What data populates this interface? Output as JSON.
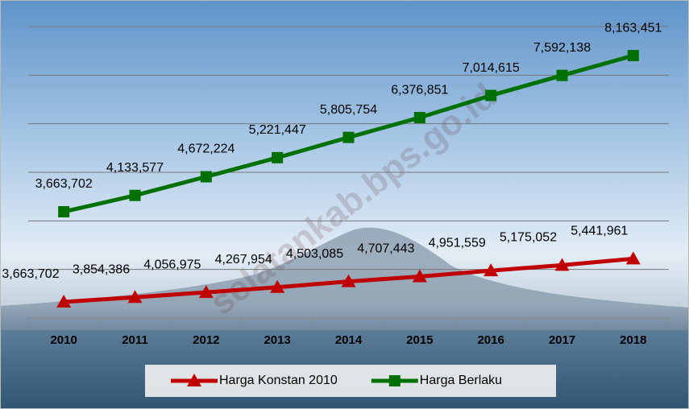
{
  "chart_data": {
    "type": "line",
    "watermark": "selatankab.bps.go.id",
    "categories": [
      "2010",
      "2011",
      "2012",
      "2013",
      "2014",
      "2015",
      "2016",
      "2017",
      "2018"
    ],
    "series": [
      {
        "name": "Harga Konstan 2010",
        "color": "#c00000",
        "marker": "triangle",
        "axis": "y2",
        "values": [
          3663702,
          3854386,
          4056975,
          4267954,
          4503085,
          4707443,
          4951559,
          5175052,
          5441961
        ],
        "value_labels": [
          "3,663,702",
          "3,854,386",
          "4,056,975",
          "4,267,954",
          "4,503,085",
          "4,707,443",
          "4,951,559",
          "5,175,052",
          "5,441,961"
        ]
      },
      {
        "name": "Harga Berlaku",
        "color": "#007000",
        "marker": "square",
        "values": [
          3663702,
          4133577,
          4672224,
          5221447,
          5805754,
          6376851,
          7014615,
          7592138,
          8163451
        ],
        "value_labels": [
          "3,663,702",
          "4,133,577",
          "4,672,224",
          "5,221,447",
          "5,805,754",
          "6,376,851",
          "7,014,615",
          "7,592,138",
          "8,163,451"
        ]
      }
    ],
    "ylim": [
      600000,
      9000000
    ],
    "yticks": [
      600000,
      2000000,
      3400000,
      4800000,
      6200000,
      7600000,
      9000000
    ],
    "y2lim": [
      3000000,
      15000000
    ],
    "grid": true,
    "legend": "bottom"
  }
}
